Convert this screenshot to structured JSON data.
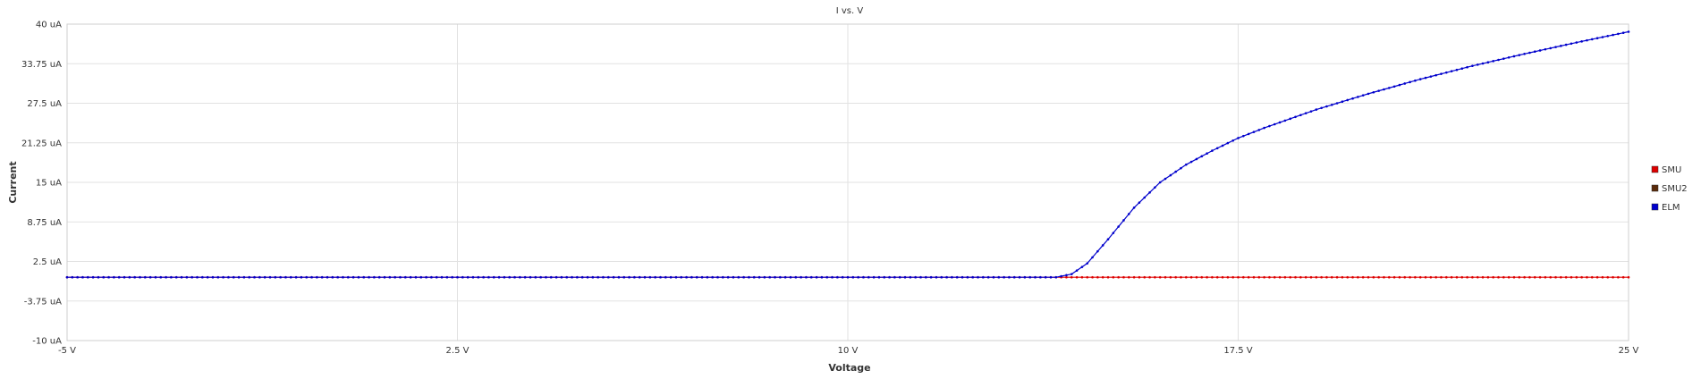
{
  "chart_data": {
    "type": "line",
    "title": "I vs. V",
    "xlabel": "Voltage",
    "ylabel": "Current",
    "xlim": [
      -5,
      25
    ],
    "ylim": [
      -10,
      40
    ],
    "x_ticks": [
      -5,
      2.5,
      10,
      17.5,
      25
    ],
    "x_tick_labels": [
      "-5 V",
      "2.5 V",
      "10 V",
      "17.5 V",
      "25 V"
    ],
    "y_ticks": [
      -10,
      -3.75,
      2.5,
      8.75,
      15,
      21.25,
      27.5,
      33.75,
      40
    ],
    "y_tick_labels": [
      "-10 uA",
      "-3.75 uA",
      "2.5 uA",
      "8.75 uA",
      "15 uA",
      "21.25 uA",
      "27.5 uA",
      "33.75 uA",
      "40 uA"
    ],
    "grid": true,
    "legend_position": "right",
    "series": [
      {
        "name": "SMU",
        "color": "#dd0000",
        "x": [
          -5,
          0,
          5,
          10,
          14.2,
          15,
          17.5,
          20,
          22.5,
          25
        ],
        "y": [
          0,
          0,
          0,
          0,
          0,
          0,
          0,
          0,
          0,
          0
        ]
      },
      {
        "name": "SMU2",
        "color": "#5a2a0a",
        "x": [],
        "y": []
      },
      {
        "name": "ELM",
        "color": "#0000cc",
        "x": [
          -5,
          0,
          5,
          10,
          14.0,
          14.3,
          14.6,
          15.0,
          15.5,
          16.0,
          16.5,
          17.0,
          17.5,
          18.0,
          19.0,
          20.0,
          21.0,
          22.0,
          23.0,
          24.0,
          25.0
        ],
        "y": [
          0,
          0,
          0,
          0,
          0,
          0.5,
          2.2,
          6.0,
          11.0,
          15.0,
          17.8,
          20.0,
          22.0,
          23.6,
          26.5,
          29.0,
          31.3,
          33.4,
          35.3,
          37.1,
          38.8
        ]
      }
    ]
  }
}
